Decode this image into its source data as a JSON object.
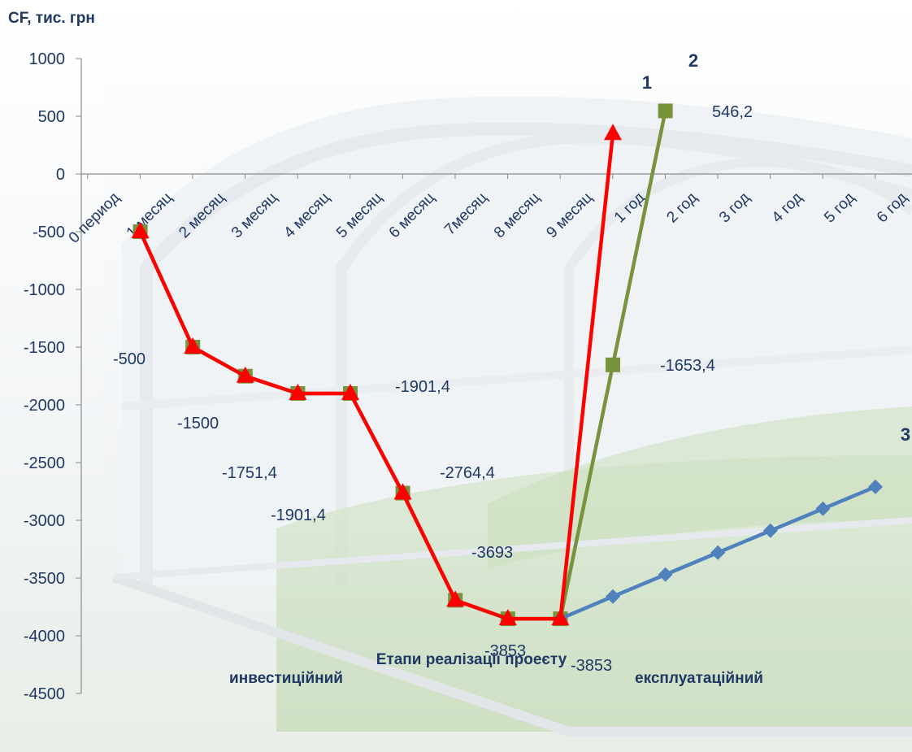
{
  "chart_data": {
    "type": "line",
    "ylabel": "CF, тис. грн",
    "xlabel": "Етапи реалізації проеєту",
    "stage_labels": [
      "инвестиційний",
      "експлуатаційний"
    ],
    "ylim": [
      -4500,
      1000
    ],
    "yticks": [
      1000,
      500,
      0,
      -500,
      -1000,
      -1500,
      -2000,
      -2500,
      -3000,
      -3500,
      -4000,
      -4500
    ],
    "categories": [
      "0 период",
      "1 месяц",
      "2 месяц",
      "3 месяц",
      "4 месяц",
      "5 месяц",
      "6 месяц",
      "7месяц",
      "8 месяц",
      "9 месяц",
      "1 год",
      "2 год",
      "3 год",
      "4 год",
      "5 год",
      "6 год"
    ],
    "series": [
      {
        "name": "1",
        "color": "#ff0000",
        "marker": "triangle",
        "values": [
          null,
          -500,
          -1500,
          -1751.4,
          -1901.4,
          -1901.4,
          -2764.4,
          -3693,
          -3853,
          -3853,
          350,
          null,
          null,
          null,
          null,
          null
        ]
      },
      {
        "name": "2",
        "color": "#77933c",
        "marker": "square",
        "values": [
          null,
          -500,
          -1500,
          -1751.4,
          -1901.4,
          -1901.4,
          -2764.4,
          -3693,
          -3853,
          -3853,
          -1653.4,
          546.2,
          null,
          null,
          null,
          null
        ]
      },
      {
        "name": "3",
        "color": "#4f81bd",
        "marker": "diamond",
        "values": [
          null,
          null,
          null,
          null,
          null,
          null,
          null,
          null,
          null,
          -3853,
          -3660,
          -3470,
          -3280,
          -3090,
          -2900,
          -2710
        ]
      }
    ],
    "data_labels": [
      "-500",
      "-1500",
      "-1751,4",
      "-1901,4",
      "-1901,4",
      "-2764,4",
      "-3693",
      "-3853",
      "-3853",
      "-1653,4",
      "546,2"
    ],
    "grid": false,
    "legend": "none"
  }
}
